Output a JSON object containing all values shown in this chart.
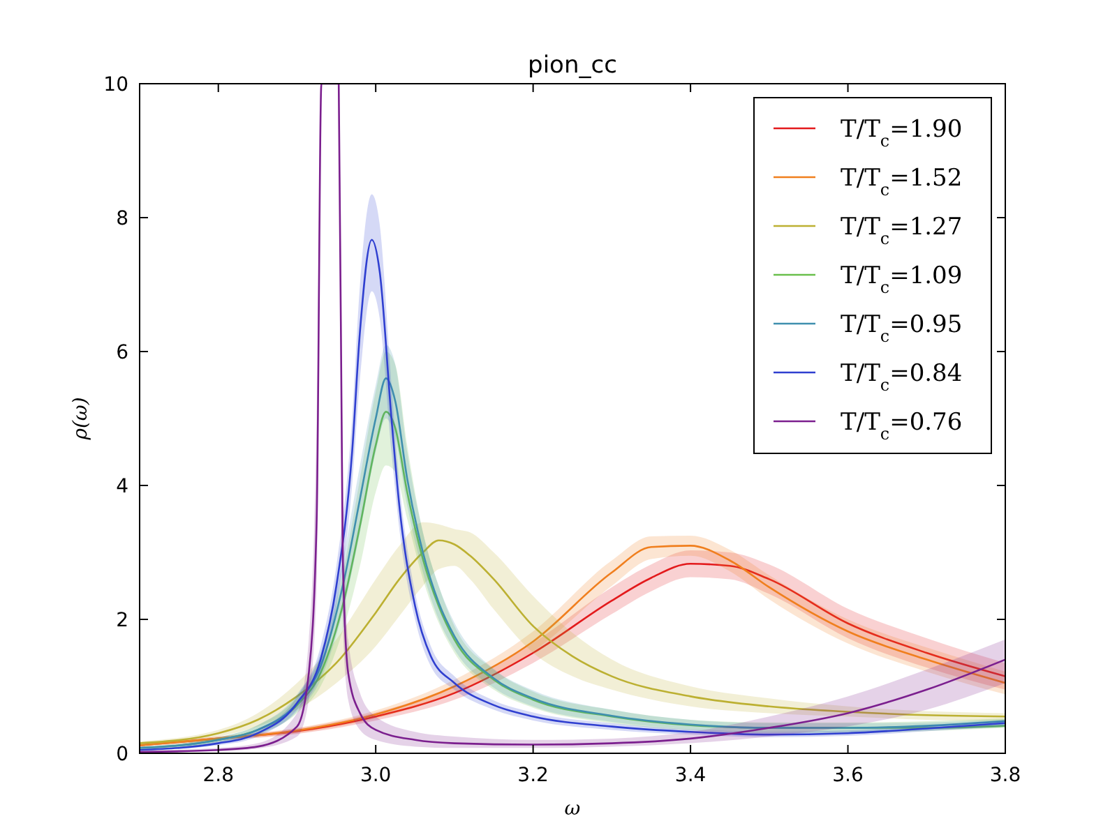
{
  "chart_data": {
    "type": "line",
    "title": "pion_cc",
    "xlabel": "ω",
    "ylabel": "ρ(ω)",
    "xlim": [
      2.7,
      3.8
    ],
    "xticks": [
      2.8,
      {
        "value": 3,
        "label": "3.0"
      },
      3.2,
      3.4,
      3.6,
      3.8
    ],
    "ylim": [
      0,
      10
    ],
    "yticks": [
      0,
      2,
      4,
      6,
      8,
      10
    ],
    "grid": false,
    "legend": "top right",
    "marker": "none",
    "line_style": "solid",
    "series": [
      {
        "name": "T/T$_{c}$=1.90",
        "color": "#e31a1c",
        "x": [
          2.7,
          2.8,
          2.9,
          3.0,
          3.1,
          3.2,
          3.3,
          3.35,
          3.4,
          3.45,
          3.5,
          3.6,
          3.7,
          3.8
        ],
        "values": [
          0.12,
          0.22,
          0.33,
          0.55,
          0.9,
          1.5,
          2.28,
          2.62,
          2.83,
          2.8,
          2.6,
          1.94,
          1.5,
          1.15
        ],
        "lower": [
          0.1,
          0.19,
          0.29,
          0.49,
          0.8,
          1.35,
          2.08,
          2.42,
          2.63,
          2.6,
          2.38,
          1.72,
          1.28,
          0.95
        ],
        "upper": [
          0.14,
          0.25,
          0.37,
          0.61,
          1.0,
          1.65,
          2.48,
          2.82,
          3.03,
          3.0,
          2.82,
          2.16,
          1.72,
          1.35
        ]
      },
      {
        "name": "T/T$_{c}$=1.52",
        "color": "#f07f1e",
        "x": [
          2.7,
          2.8,
          2.9,
          3.0,
          3.1,
          3.2,
          3.3,
          3.35,
          3.4,
          3.45,
          3.5,
          3.6,
          3.7,
          3.8
        ],
        "values": [
          0.12,
          0.22,
          0.34,
          0.58,
          1.0,
          1.67,
          2.7,
          3.08,
          3.1,
          2.88,
          2.48,
          1.82,
          1.4,
          1.05
        ],
        "lower": [
          0.1,
          0.19,
          0.3,
          0.52,
          0.9,
          1.52,
          2.5,
          2.9,
          2.95,
          2.72,
          2.3,
          1.64,
          1.22,
          0.88
        ],
        "upper": [
          0.14,
          0.25,
          0.38,
          0.64,
          1.1,
          1.82,
          2.88,
          3.24,
          3.25,
          3.04,
          2.66,
          2.0,
          1.58,
          1.22
        ]
      },
      {
        "name": "T/T$_{c}$=1.27",
        "color": "#bcb032",
        "x": [
          2.7,
          2.8,
          2.85,
          2.9,
          2.95,
          3.0,
          3.03,
          3.06,
          3.08,
          3.1,
          3.12,
          3.15,
          3.2,
          3.25,
          3.3,
          3.4,
          3.5,
          3.6,
          3.7,
          3.8
        ],
        "values": [
          0.15,
          0.3,
          0.5,
          0.85,
          1.35,
          2.1,
          2.6,
          3.0,
          3.18,
          3.12,
          2.95,
          2.6,
          1.9,
          1.45,
          1.15,
          0.85,
          0.7,
          0.62,
          0.57,
          0.55
        ],
        "lower": [
          0.12,
          0.25,
          0.4,
          0.65,
          1.05,
          1.6,
          2.05,
          2.5,
          2.75,
          2.8,
          2.6,
          2.15,
          1.5,
          1.15,
          0.95,
          0.7,
          0.6,
          0.55,
          0.5,
          0.48
        ],
        "upper": [
          0.18,
          0.35,
          0.6,
          1.05,
          1.7,
          2.6,
          3.1,
          3.45,
          3.42,
          3.35,
          3.3,
          3.0,
          2.35,
          1.8,
          1.4,
          1.0,
          0.82,
          0.7,
          0.63,
          0.6
        ]
      },
      {
        "name": "T/T$_{c}$=1.09",
        "color": "#6abf4b",
        "x": [
          2.7,
          2.8,
          2.85,
          2.9,
          2.93,
          2.96,
          2.98,
          3.0,
          3.013,
          3.025,
          3.04,
          3.06,
          3.08,
          3.1,
          3.15,
          3.2,
          3.3,
          3.4,
          3.5,
          3.6,
          3.7,
          3.8
        ],
        "values": [
          0.08,
          0.2,
          0.35,
          0.72,
          1.2,
          2.3,
          3.4,
          4.6,
          5.1,
          4.85,
          3.9,
          2.9,
          2.2,
          1.7,
          1.1,
          0.8,
          0.55,
          0.42,
          0.38,
          0.38,
          0.38,
          0.41
        ],
        "lower": [
          0.06,
          0.16,
          0.28,
          0.6,
          1.0,
          1.9,
          2.8,
          3.9,
          4.3,
          4.2,
          3.5,
          2.6,
          1.95,
          1.5,
          0.95,
          0.68,
          0.45,
          0.34,
          0.3,
          0.3,
          0.33,
          0.38
        ],
        "upper": [
          0.1,
          0.24,
          0.42,
          0.85,
          1.45,
          2.8,
          4.1,
          5.4,
          6.0,
          5.8,
          4.6,
          3.3,
          2.5,
          1.9,
          1.25,
          0.92,
          0.65,
          0.5,
          0.46,
          0.46,
          0.48,
          0.52
        ]
      },
      {
        "name": "T/T$_{c}$=0.95",
        "color": "#3f8fae",
        "x": [
          2.7,
          2.8,
          2.85,
          2.9,
          2.93,
          2.96,
          2.98,
          3.0,
          3.013,
          3.025,
          3.04,
          3.06,
          3.08,
          3.1,
          3.15,
          3.2,
          3.3,
          3.4,
          3.5,
          3.6,
          3.7,
          3.8
        ],
        "values": [
          0.08,
          0.2,
          0.35,
          0.75,
          1.3,
          2.6,
          3.8,
          5.0,
          5.6,
          5.25,
          4.1,
          3.0,
          2.25,
          1.75,
          1.12,
          0.82,
          0.56,
          0.43,
          0.38,
          0.38,
          0.41,
          0.48
        ],
        "lower": [
          0.06,
          0.16,
          0.28,
          0.62,
          1.1,
          2.2,
          3.3,
          4.5,
          5.0,
          4.7,
          3.7,
          2.7,
          2.0,
          1.55,
          0.98,
          0.7,
          0.47,
          0.36,
          0.31,
          0.31,
          0.34,
          0.39
        ],
        "upper": [
          0.1,
          0.24,
          0.42,
          0.88,
          1.5,
          3.0,
          4.3,
          5.5,
          6.1,
          5.8,
          4.5,
          3.3,
          2.5,
          1.95,
          1.26,
          0.94,
          0.65,
          0.5,
          0.45,
          0.45,
          0.46,
          0.51
        ]
      },
      {
        "name": "T/T$_{c}$=0.84",
        "color": "#2f3fd0",
        "x": [
          2.7,
          2.8,
          2.85,
          2.9,
          2.93,
          2.95,
          2.97,
          2.98,
          2.995,
          3.005,
          3.02,
          3.03,
          3.05,
          3.07,
          3.1,
          3.15,
          3.2,
          3.3,
          3.4,
          3.5,
          3.6,
          3.7,
          3.8
        ],
        "values": [
          0.05,
          0.15,
          0.3,
          0.75,
          1.4,
          2.5,
          4.5,
          6.3,
          7.67,
          7.2,
          5.0,
          3.7,
          2.2,
          1.45,
          1.05,
          0.72,
          0.55,
          0.4,
          0.32,
          0.28,
          0.3,
          0.37,
          0.45
        ],
        "lower": [
          0.04,
          0.12,
          0.25,
          0.65,
          1.2,
          2.2,
          4.0,
          5.6,
          6.9,
          6.5,
          4.5,
          3.35,
          2.0,
          1.3,
          0.95,
          0.65,
          0.49,
          0.35,
          0.28,
          0.24,
          0.26,
          0.33,
          0.41
        ],
        "upper": [
          0.06,
          0.18,
          0.35,
          0.85,
          1.6,
          2.8,
          5.0,
          7.0,
          8.35,
          7.9,
          5.5,
          4.05,
          2.4,
          1.6,
          1.15,
          0.79,
          0.61,
          0.45,
          0.36,
          0.32,
          0.34,
          0.41,
          0.49
        ]
      },
      {
        "name": "T/T$_{c}$=0.76",
        "color": "#7b1f8e",
        "x": [
          2.7,
          2.8,
          2.85,
          2.9,
          2.915,
          2.925,
          2.931,
          2.953,
          2.958,
          2.965,
          2.98,
          3.0,
          3.05,
          3.1,
          3.2,
          3.3,
          3.4,
          3.5,
          3.6,
          3.7,
          3.8
        ],
        "values": [
          0.02,
          0.05,
          0.1,
          0.4,
          1.2,
          3.5,
          10,
          10,
          3.0,
          1.2,
          0.6,
          0.35,
          0.2,
          0.15,
          0.13,
          0.15,
          0.22,
          0.38,
          0.6,
          0.95,
          1.4
        ],
        "lower": [
          0.01,
          0.03,
          0.07,
          0.25,
          0.8,
          2.5,
          10,
          10,
          2.0,
          0.8,
          0.35,
          0.2,
          0.1,
          0.08,
          0.08,
          0.1,
          0.15,
          0.25,
          0.4,
          0.65,
          1.05
        ],
        "upper": [
          0.04,
          0.08,
          0.15,
          0.6,
          1.7,
          5.0,
          10,
          10,
          4.5,
          1.7,
          0.9,
          0.55,
          0.32,
          0.25,
          0.2,
          0.22,
          0.32,
          0.55,
          0.85,
          1.25,
          1.7
        ]
      }
    ]
  }
}
